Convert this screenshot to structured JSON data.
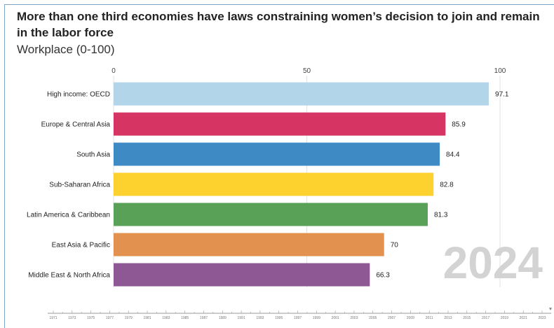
{
  "title": "More than one third economies have laws constraining women’s decision to join and remain in the labor force",
  "subtitle": "Workplace (0-100)",
  "chart_data": {
    "type": "bar",
    "orientation": "horizontal",
    "categories": [
      "High income: OECD",
      "Europe & Central Asia",
      "South Asia",
      "Sub-Saharan Africa",
      "Latin America & Caribbean",
      "East Asia & Pacific",
      "Middle East & North Africa"
    ],
    "values": [
      97.1,
      85.9,
      84.4,
      82.8,
      81.3,
      70,
      66.3
    ],
    "value_labels": [
      "97.1",
      "85.9",
      "84.4",
      "82.8",
      "81.3",
      "70",
      "66.3"
    ],
    "colors": [
      "#b3d5ea",
      "#d63564",
      "#3e8ac4",
      "#fdd22e",
      "#58a157",
      "#e2924e",
      "#8e5894"
    ],
    "xlim": [
      0,
      100
    ],
    "x_ticks": [
      0,
      50,
      100
    ],
    "x_tick_labels": [
      "0",
      "50",
      "100"
    ],
    "grid": false,
    "year_watermark": "2024",
    "timeline_labels": [
      "1971",
      "1973",
      "1975",
      "1977",
      "1979",
      "1981",
      "1983",
      "1985",
      "1987",
      "1989",
      "1991",
      "1993",
      "1995",
      "1997",
      "1999",
      "2001",
      "2003",
      "2005",
      "2007",
      "2009",
      "2011",
      "2013",
      "2015",
      "2017",
      "2019",
      "2021",
      "2023"
    ]
  }
}
